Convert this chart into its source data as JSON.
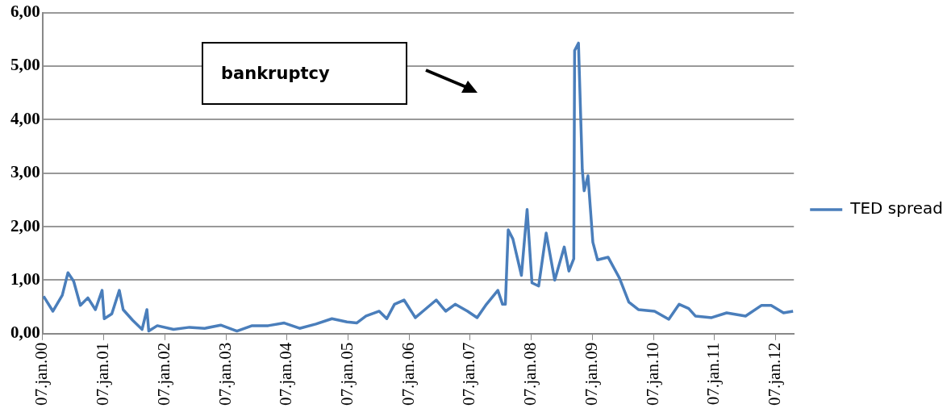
{
  "chart_data": {
    "type": "line",
    "annotations": [
      "bankruptcy"
    ],
    "x": [
      "2000-01-13",
      "2000-03-09",
      "2000-05-04",
      "2000-06-07",
      "2000-07-11",
      "2000-08-20",
      "2000-10-04",
      "2000-11-18",
      "2000-12-28",
      "2001-01-10",
      "2001-02-24",
      "2001-04-10",
      "2001-05-03",
      "2001-06-29",
      "2001-08-24",
      "2001-09-22",
      "2001-10-03",
      "2001-11-23",
      "2002-02-28",
      "2002-06-04",
      "2002-09-02",
      "2002-12-07",
      "2003-03-14",
      "2003-06-13",
      "2003-09-17",
      "2003-12-22",
      "2004-03-23",
      "2004-06-28",
      "2004-10-02",
      "2004-12-31",
      "2005-02-27",
      "2005-04-24",
      "2005-07-12",
      "2005-08-26",
      "2005-10-11",
      "2005-12-07",
      "2006-02-13",
      "2006-03-30",
      "2006-06-18",
      "2006-08-13",
      "2006-10-09",
      "2006-12-22",
      "2007-02-17",
      "2007-04-14",
      "2007-06-21",
      "2007-07-19",
      "2007-08-05",
      "2007-08-22",
      "2007-09-19",
      "2007-11-09",
      "2007-12-13",
      "2008-01-11",
      "2008-02-20",
      "2008-04-05",
      "2008-05-26",
      "2008-07-22",
      "2008-08-19",
      "2008-09-17",
      "2008-09-22",
      "2008-10-15",
      "2008-11-07",
      "2008-11-18",
      "2008-12-11",
      "2009-01-09",
      "2009-02-06",
      "2009-04-10",
      "2009-06-17",
      "2009-08-12",
      "2009-10-08",
      "2010-01-13",
      "2010-04-08",
      "2010-06-09",
      "2010-08-05",
      "2010-09-14",
      "2010-12-20",
      "2011-03-20",
      "2011-07-11",
      "2011-10-15",
      "2011-12-11",
      "2012-02-23",
      "2012-04-20"
    ],
    "series": [
      {
        "name": "TED spread",
        "color": "#4a7ebb",
        "values": [
          0.7,
          0.42,
          0.72,
          1.14,
          0.98,
          0.53,
          0.67,
          0.45,
          0.81,
          0.28,
          0.37,
          0.81,
          0.45,
          0.25,
          0.08,
          0.45,
          0.05,
          0.15,
          0.08,
          0.12,
          0.1,
          0.16,
          0.05,
          0.15,
          0.15,
          0.2,
          0.1,
          0.18,
          0.28,
          0.22,
          0.2,
          0.33,
          0.42,
          0.28,
          0.55,
          0.63,
          0.3,
          0.42,
          0.63,
          0.42,
          0.55,
          0.42,
          0.3,
          0.55,
          0.81,
          0.55,
          0.55,
          1.94,
          1.77,
          1.09,
          2.32,
          0.95,
          0.89,
          1.88,
          1.0,
          1.62,
          1.17,
          1.4,
          5.29,
          5.43,
          3.06,
          2.67,
          2.95,
          1.71,
          1.38,
          1.43,
          1.04,
          0.59,
          0.45,
          0.42,
          0.27,
          0.55,
          0.47,
          0.33,
          0.3,
          0.39,
          0.33,
          0.53,
          0.53,
          0.39,
          0.42
        ]
      }
    ],
    "xlim": [
      "2000-01-07",
      "2012-04-25"
    ],
    "xticks": [
      {
        "value": "2000-01-07",
        "label": "07.jan.00"
      },
      {
        "value": "2001-01-07",
        "label": "07.jan.01"
      },
      {
        "value": "2002-01-07",
        "label": "07.jan.02"
      },
      {
        "value": "2003-01-07",
        "label": "07.jan.03"
      },
      {
        "value": "2004-01-07",
        "label": "07.jan.04"
      },
      {
        "value": "2005-01-07",
        "label": "07.jan.05"
      },
      {
        "value": "2006-01-07",
        "label": "07.jan.06"
      },
      {
        "value": "2007-01-07",
        "label": "07.jan.07"
      },
      {
        "value": "2008-01-07",
        "label": "07.jan.08"
      },
      {
        "value": "2009-01-07",
        "label": "07.jan.09"
      },
      {
        "value": "2010-01-07",
        "label": "07.jan.10"
      },
      {
        "value": "2011-01-07",
        "label": "07.jan.11"
      },
      {
        "value": "2012-01-07",
        "label": "07.jan.12"
      }
    ],
    "ylim": [
      0,
      6
    ],
    "yticks": [
      {
        "value": 0,
        "label": "0,00"
      },
      {
        "value": 1,
        "label": "1,00"
      },
      {
        "value": 2,
        "label": "2,00"
      },
      {
        "value": 3,
        "label": "3,00"
      },
      {
        "value": 4,
        "label": "4,00"
      },
      {
        "value": 5,
        "label": "5,00"
      },
      {
        "value": 6,
        "label": "6,00"
      }
    ],
    "grid": "y",
    "legend": "right",
    "marker": "none",
    "line_style": "solid"
  }
}
